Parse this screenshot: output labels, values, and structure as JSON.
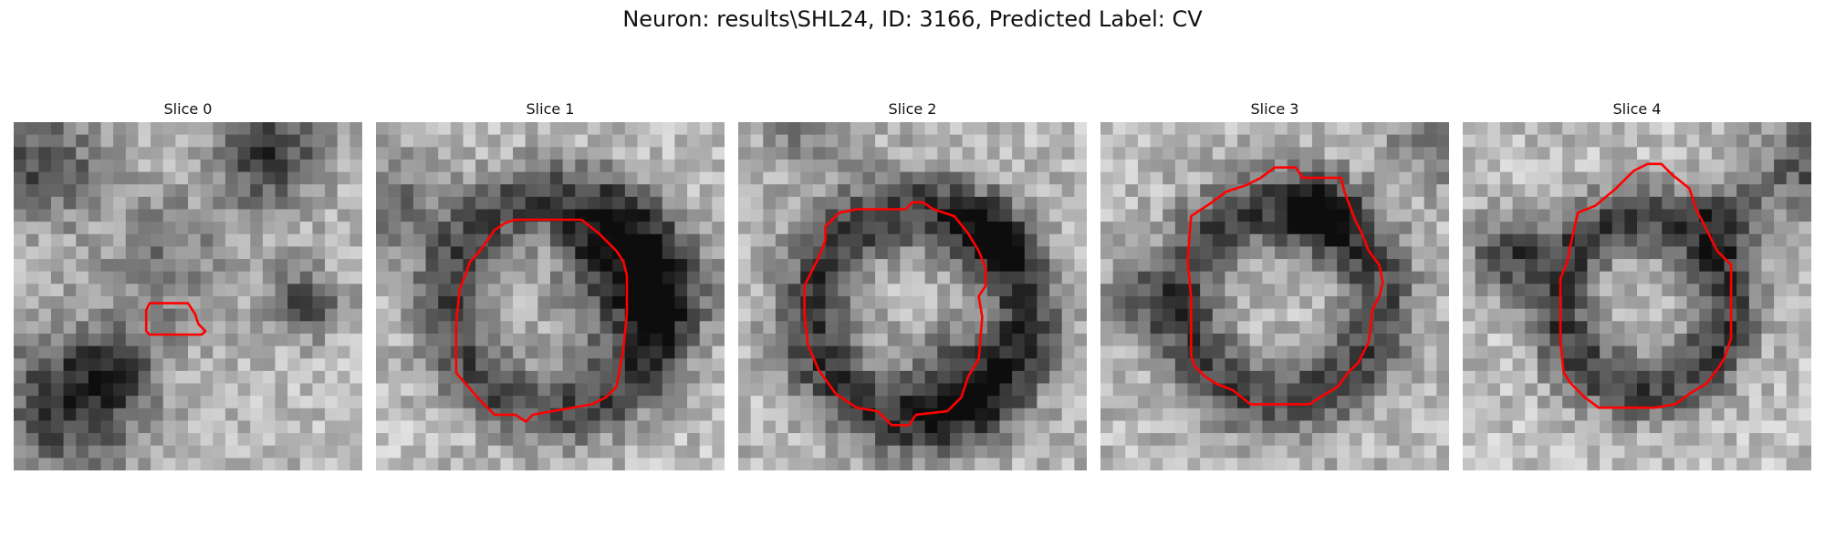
{
  "figure": {
    "title": "Neuron: results\\SHL24, ID: 3166, Predicted Label: CV"
  },
  "panels": [
    {
      "title": "Slice 0",
      "contour_color": "#ff0000",
      "image": "grayscale microscopy patch"
    },
    {
      "title": "Slice 1",
      "contour_color": "#ff0000",
      "image": "grayscale microscopy patch"
    },
    {
      "title": "Slice 2",
      "contour_color": "#ff0000",
      "image": "grayscale microscopy patch"
    },
    {
      "title": "Slice 3",
      "contour_color": "#ff0000",
      "image": "grayscale microscopy patch"
    },
    {
      "title": "Slice 4",
      "contour_color": "#ff0000",
      "image": "grayscale microscopy patch"
    }
  ]
}
